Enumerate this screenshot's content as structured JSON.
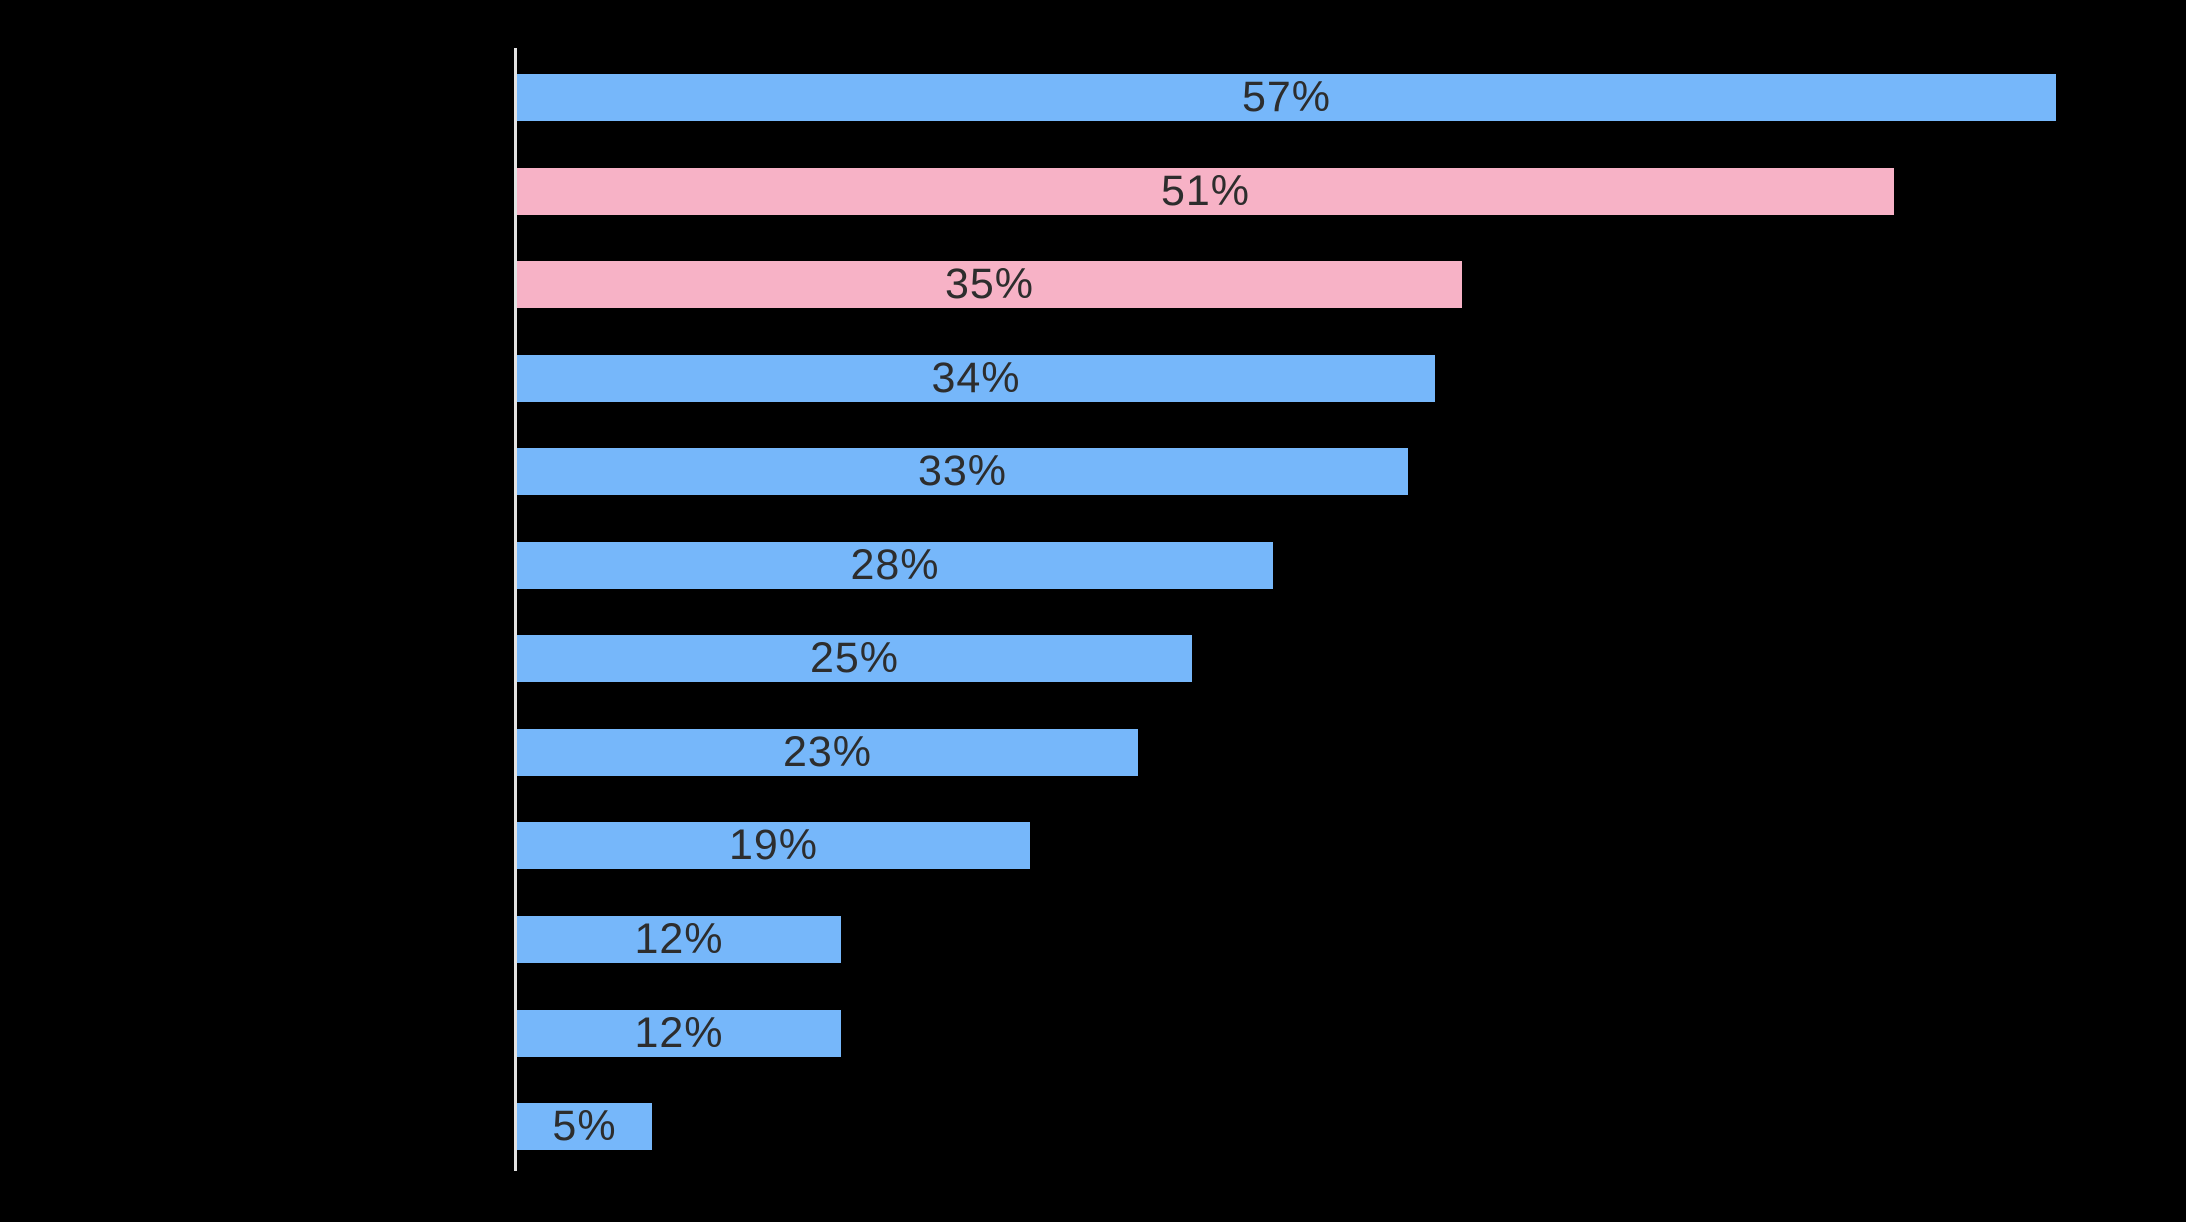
{
  "chart_data": {
    "type": "bar",
    "orientation": "horizontal",
    "title": "",
    "xlabel": "",
    "ylabel": "",
    "xlim": [
      0,
      60
    ],
    "grid": false,
    "legend": "none",
    "background_color": "#000000",
    "axis_line_color": "#e3e3e3",
    "label_color": "#2d2d2d",
    "bar_values": [
      57,
      51,
      35,
      34,
      33,
      28,
      25,
      23,
      19,
      12,
      12,
      5
    ],
    "bar_labels": [
      "57%",
      "51%",
      "35%",
      "34%",
      "33%",
      "28%",
      "25%",
      "23%",
      "19%",
      "12%",
      "12%",
      "5%"
    ],
    "bar_color_keys": [
      "blue",
      "pink",
      "pink",
      "blue",
      "blue",
      "blue",
      "blue",
      "blue",
      "blue",
      "blue",
      "blue",
      "blue"
    ],
    "colors": {
      "blue": "#76b7fa",
      "pink": "#f7b2c6"
    }
  }
}
